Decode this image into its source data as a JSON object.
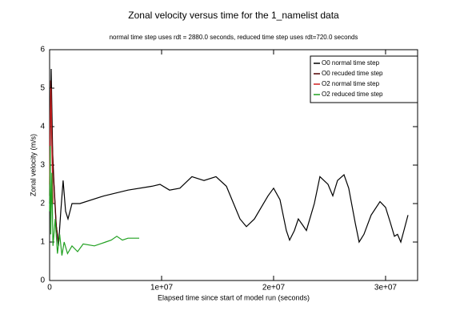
{
  "chart_data": {
    "type": "line",
    "title": "Zonal velocity versus time for the 1_namelist data",
    "subtitle": "normal time step uses rdt = 2880.0 seconds, reduced time step uses rdt=720.0 seconds",
    "xlabel": "Elapsed time since start of model run (seconds)",
    "ylabel": "Zonal velocity  (m/s)",
    "xlim": [
      0,
      32860000
    ],
    "ylim": [
      0,
      6
    ],
    "xticks": [
      0,
      {
        "value": 10000000,
        "label": "1e+07"
      },
      {
        "value": 20000000,
        "label": "2e+07"
      },
      {
        "value": 30000000,
        "label": "3e+07"
      }
    ],
    "yticks": [
      0,
      1,
      2,
      3,
      4,
      5,
      6
    ],
    "legend": "upper right",
    "series": [
      {
        "name": "O0 normal time step",
        "color": "#000000",
        "x": [
          0,
          140000,
          290000,
          570000,
          790000,
          1000000,
          1210000,
          1430000,
          1640000,
          2000000,
          2710000,
          4860000,
          7000000,
          9140000,
          9860000,
          10710000,
          11640000,
          12710000,
          13790000,
          14860000,
          15790000,
          16430000,
          17000000,
          17570000,
          18290000,
          19500000,
          20000000,
          20570000,
          21140000,
          21430000,
          21860000,
          22210000,
          22570000,
          22930000,
          23640000,
          24140000,
          24860000,
          25290000,
          25710000,
          26290000,
          26710000,
          27290000,
          27640000,
          28070000,
          28710000,
          29500000,
          30000000,
          30430000,
          30790000,
          31070000,
          31360000,
          31640000,
          32000000
        ],
        "values": [
          2.0,
          5.5,
          3.0,
          1.5,
          0.9,
          1.8,
          2.6,
          1.8,
          1.6,
          2.0,
          2.0,
          2.2,
          2.35,
          2.45,
          2.5,
          2.35,
          2.4,
          2.7,
          2.6,
          2.7,
          2.45,
          2.0,
          1.6,
          1.4,
          1.6,
          2.2,
          2.4,
          2.1,
          1.3,
          1.05,
          1.3,
          1.6,
          1.45,
          1.3,
          2.0,
          2.7,
          2.5,
          2.2,
          2.6,
          2.75,
          2.4,
          1.5,
          1.0,
          1.2,
          1.7,
          2.05,
          1.9,
          1.5,
          1.15,
          1.2,
          1.0,
          1.3,
          1.7
        ]
      },
      {
        "name": "O0 recuded time step",
        "color": "#500000",
        "x": [
          0,
          100000,
          200000,
          400000,
          600000,
          800000
        ],
        "values": [
          2.2,
          5.2,
          3.8,
          2.5,
          1.4,
          1.0
        ]
      },
      {
        "name": "O2 normal time step",
        "color": "#d02020",
        "x": [
          0,
          50000,
          120000,
          200000,
          300000
        ],
        "values": [
          2.5,
          4.2,
          5.0,
          3.5,
          2.0
        ]
      },
      {
        "name": "O2 reduced time step",
        "color": "#20a020",
        "x": [
          0,
          50000,
          100000,
          200000,
          300000,
          500000,
          700000,
          900000,
          1100000,
          1300000,
          1600000,
          2000000,
          2500000,
          3000000,
          4000000,
          5000000,
          5500000,
          6000000,
          6500000,
          7000000,
          8000000
        ],
        "values": [
          1.8,
          3.5,
          1.2,
          2.8,
          0.9,
          1.6,
          0.7,
          1.2,
          0.65,
          1.0,
          0.7,
          0.9,
          0.75,
          0.95,
          0.9,
          1.0,
          1.05,
          1.15,
          1.05,
          1.1,
          1.1
        ]
      }
    ]
  }
}
